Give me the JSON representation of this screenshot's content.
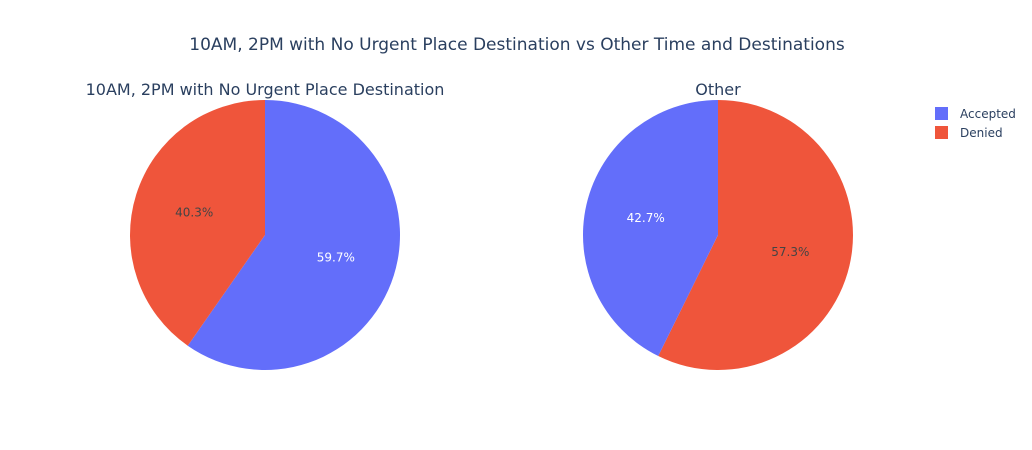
{
  "title": "10AM, 2PM with No Urgent Place Destination vs Other Time and Destinations",
  "colors": {
    "Accepted": "#636efa",
    "Denied": "#ef553b"
  },
  "legend": {
    "placement": "top-right",
    "items": [
      {
        "label": "Accepted",
        "color": "#636efa"
      },
      {
        "label": "Denied",
        "color": "#ef553b"
      }
    ]
  },
  "chart_data": [
    {
      "type": "pie",
      "title": "10AM, 2PM with No Urgent Place Destination",
      "labels": [
        "Accepted",
        "Denied"
      ],
      "values": [
        59.7,
        40.3
      ],
      "text": [
        "59.7%",
        "40.3%"
      ],
      "direction": "clockwise",
      "start_angle_deg": 0
    },
    {
      "type": "pie",
      "title": "Other",
      "labels": [
        "Denied",
        "Accepted"
      ],
      "values": [
        57.3,
        42.7
      ],
      "text": [
        "57.3%",
        "42.7%"
      ],
      "direction": "clockwise",
      "start_angle_deg": 0
    }
  ]
}
